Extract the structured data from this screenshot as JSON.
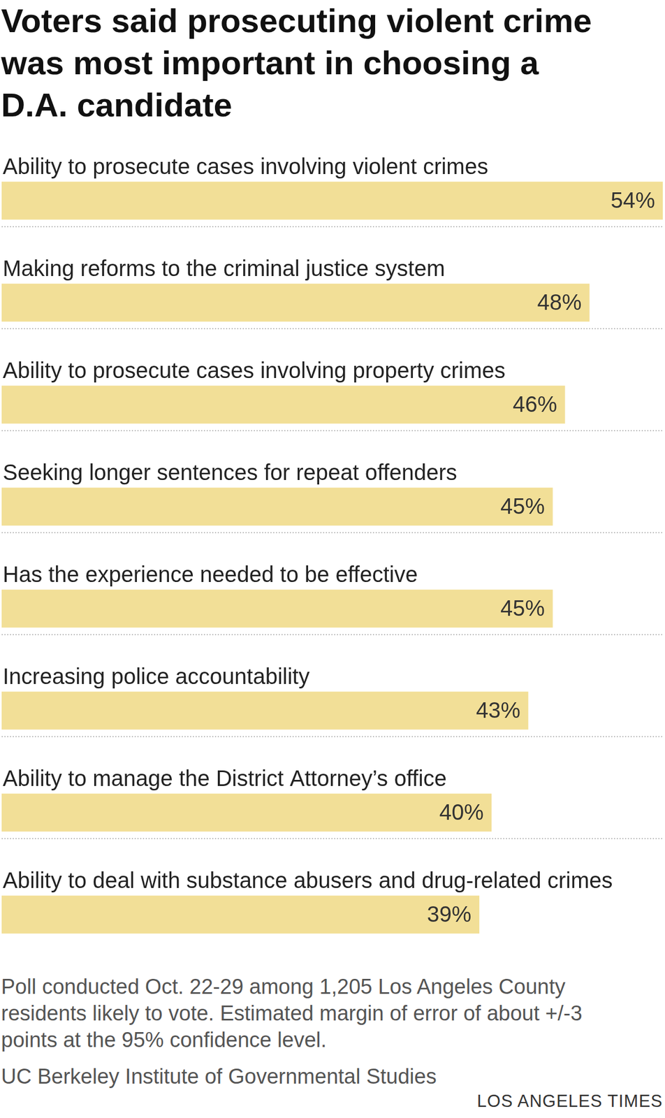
{
  "chart_data": {
    "type": "bar",
    "title": "Voters said prosecuting violent crime was most important in choosing a D.A. candidate",
    "orientation": "horizontal",
    "categories": [
      "Ability to prosecute cases involving violent crimes",
      "Making reforms to the criminal justice system",
      "Ability to prosecute cases involving property crimes",
      "Seeking longer sentences for repeat offenders",
      "Has the experience needed to be effective",
      "Increasing police accountability",
      "Ability to manage the District Attorney’s office",
      "Ability to deal with substance abusers and drug-related crimes"
    ],
    "values": [
      54,
      48,
      46,
      45,
      45,
      43,
      40,
      39
    ],
    "value_labels": [
      "54%",
      "48%",
      "46%",
      "45%",
      "45%",
      "43%",
      "40%",
      "39%"
    ],
    "color": "#f2df97",
    "xlim": [
      0,
      54
    ],
    "data_labels": true,
    "tick_labels": false,
    "grid": false,
    "footnote": "Poll conducted Oct. 22-29 among 1,205 Los Angeles County residents likely to vote. Estimated margin of error of about +/-3 points at the 95% confidence level.",
    "source": "UC Berkeley Institute of Governmental Studies",
    "credit": "LOS ANGELES TIMES"
  }
}
